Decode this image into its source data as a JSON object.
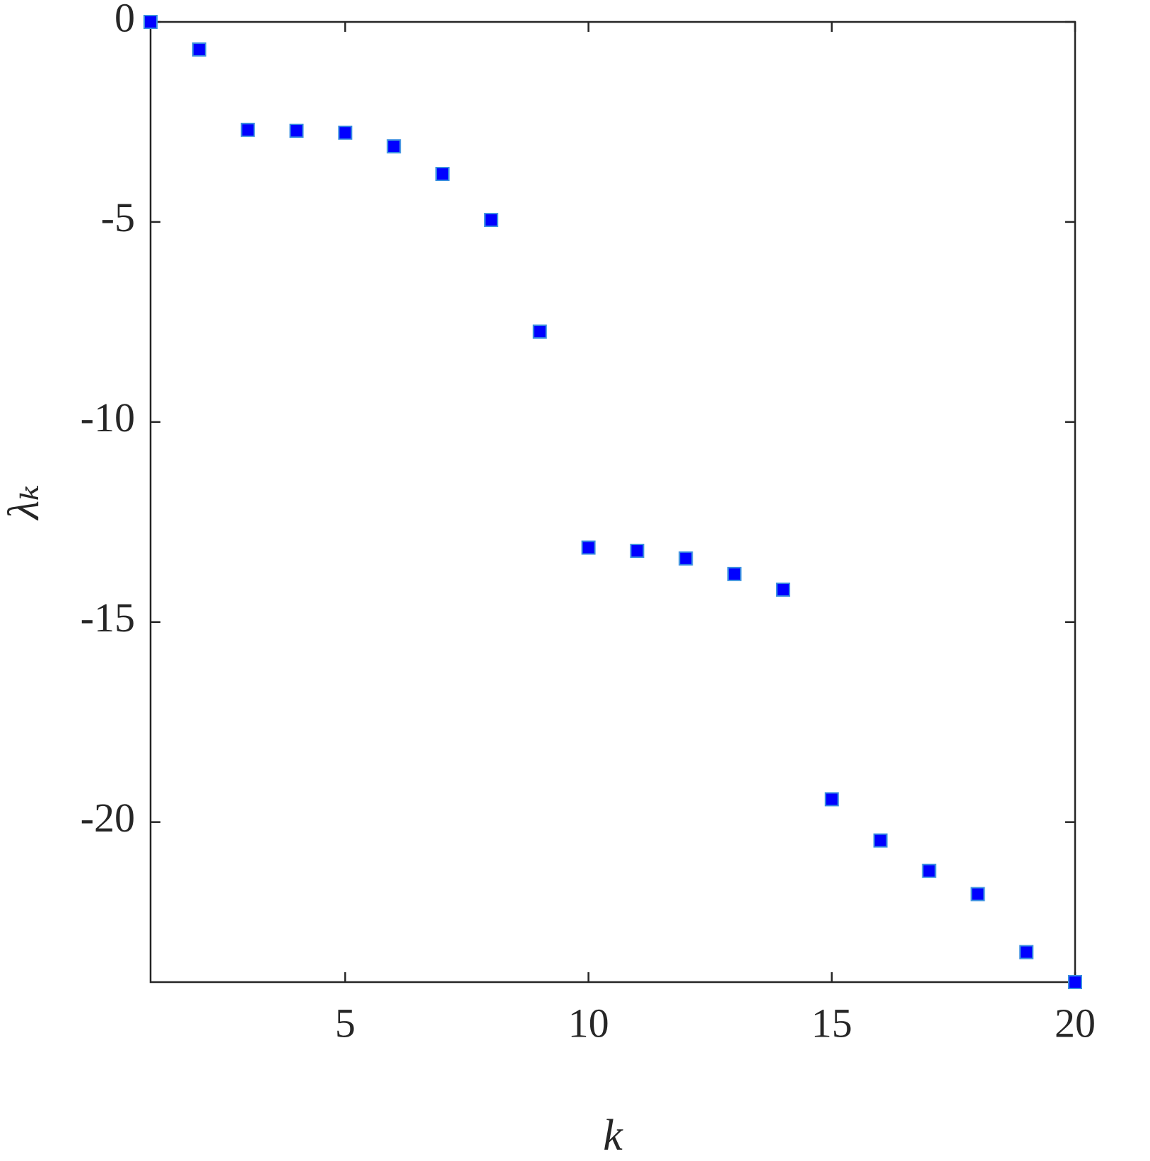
{
  "chart_data": {
    "type": "scatter",
    "xlabel": "k",
    "ylabel": "λₖ",
    "x": [
      1,
      2,
      3,
      4,
      5,
      6,
      7,
      8,
      9,
      10,
      11,
      12,
      13,
      14,
      15,
      16,
      17,
      18,
      19,
      20
    ],
    "values": [
      0,
      -0.69,
      -2.7,
      -2.72,
      -2.77,
      -3.11,
      -3.8,
      -4.95,
      -7.74,
      -13.14,
      -13.22,
      -13.41,
      -13.8,
      -14.19,
      -19.43,
      -20.46,
      -21.22,
      -21.8,
      -23.25,
      -24
    ],
    "color": "#0000ff",
    "xlim": [
      1,
      20
    ],
    "ylim": [
      -24,
      0
    ],
    "xticks": [
      5,
      10,
      15,
      20
    ],
    "yticks": [
      -20,
      -15,
      -10,
      -5,
      0
    ],
    "marker": "square",
    "grid": false
  }
}
